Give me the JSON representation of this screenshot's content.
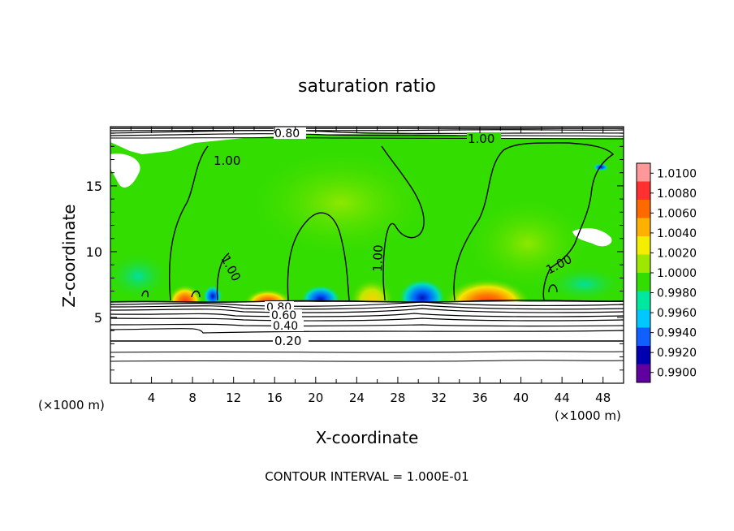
{
  "chart_data": {
    "type": "heatmap",
    "title": "saturation ratio",
    "xlabel": "X-coordinate",
    "ylabel": "Z-coordinate",
    "x_unit_note": "(×1000 m)",
    "x_unit_note_right": "(×1000 m)",
    "footer": "CONTOUR INTERVAL = 1.000E-01",
    "xlim": [
      0,
      50
    ],
    "ylim": [
      0,
      19.5
    ],
    "x_ticks": [
      "4",
      "8",
      "12",
      "16",
      "20",
      "24",
      "28",
      "32",
      "36",
      "40",
      "44",
      "48"
    ],
    "y_ticks": [
      "5",
      "10",
      "15"
    ],
    "colorbar": {
      "labels": [
        "1.0100",
        "1.0080",
        "1.0060",
        "1.0040",
        "1.0020",
        "1.0000",
        "0.9980",
        "0.9960",
        "0.9940",
        "0.9920",
        "0.9900"
      ],
      "colors": [
        "#ff9999",
        "#ff3030",
        "#ff6a00",
        "#ffb000",
        "#f3ee00",
        "#9ee800",
        "#33dd00",
        "#00e8a0",
        "#00c8ff",
        "#1060ff",
        "#0000b0",
        "#6000a0"
      ]
    },
    "contour_labels": [
      "1.00",
      "1.00",
      "1.00",
      "1.00",
      "1.00",
      "0.80",
      "0.80",
      "0.60",
      "0.40",
      "0.20"
    ],
    "contour_levels": [
      0.2,
      0.4,
      0.6,
      0.8,
      1.0
    ],
    "grid": false
  }
}
